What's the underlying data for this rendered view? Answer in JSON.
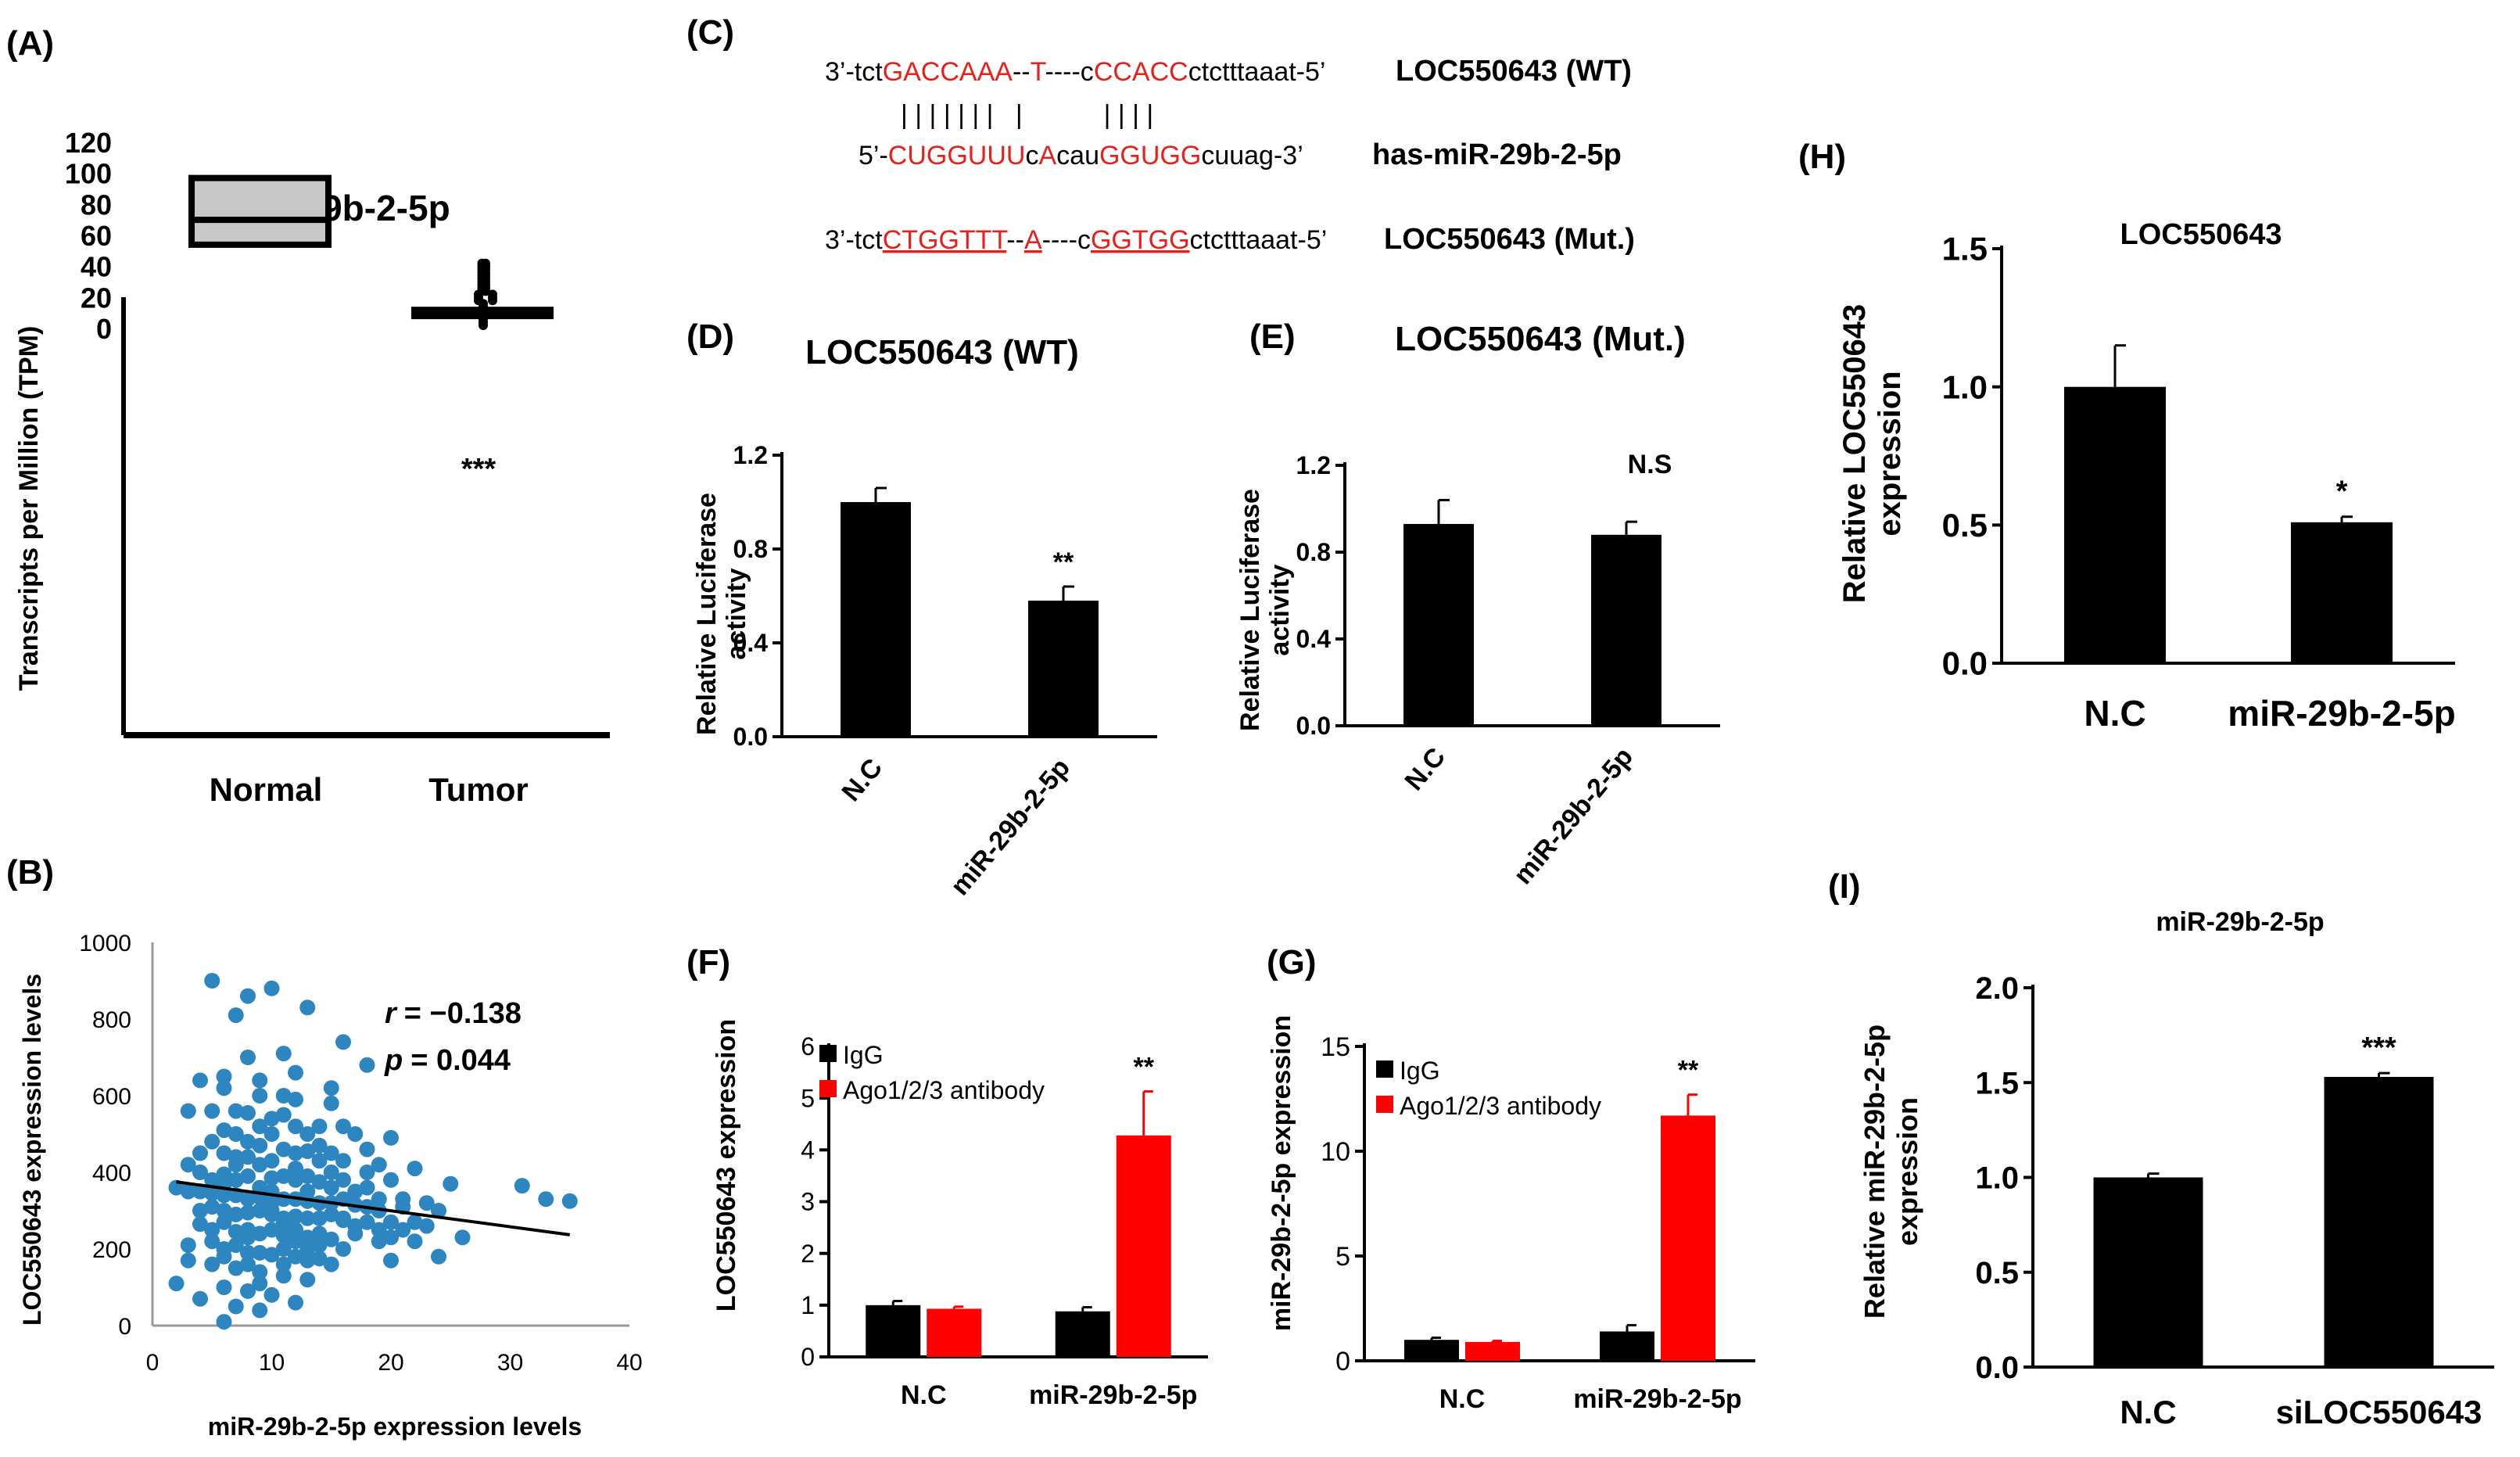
{
  "panels": {
    "A": {
      "letter": "(A)",
      "chart_data": {
        "type": "box",
        "title": "miR-29b-2-5p",
        "ylabel": "Transcripts per Million (TPM)",
        "ylim": [
          -15,
          125
        ],
        "yticks": [
          "0",
          "20",
          "40",
          "60",
          "80",
          "100",
          "120"
        ],
        "categories": [
          "Normal",
          "Tumor"
        ],
        "boxes": [
          {
            "name": "Normal",
            "q1": 54,
            "median": 70,
            "q3": 97
          },
          {
            "name": "Tumor",
            "q1": 7,
            "median": 10,
            "q3": 13
          }
        ],
        "tumor_points_range": [
          2,
          42
        ],
        "significance": "***"
      }
    },
    "B": {
      "letter": "(B)",
      "chart_data": {
        "type": "scatter",
        "xlabel": "miR-29b-2-5p expression levels",
        "ylabel": "LOC550643 expression levels",
        "xlim": [
          0,
          40
        ],
        "ylim": [
          0,
          1000
        ],
        "xticks": [
          "0",
          "10",
          "20",
          "30",
          "40"
        ],
        "yticks": [
          "0",
          "200",
          "400",
          "600",
          "800",
          "1000"
        ],
        "r_label": "r",
        "r_value": "= −0.138",
        "p_label": "p",
        "p_value": "= 0.044",
        "trendline": {
          "x": [
            2,
            35
          ],
          "y": [
            375,
            237
          ]
        },
        "point_color": "#2e86c1",
        "points": [
          [
            5,
            900
          ],
          [
            10,
            880
          ],
          [
            8,
            860
          ],
          [
            13,
            830
          ],
          [
            7,
            810
          ],
          [
            16,
            740
          ],
          [
            11,
            710
          ],
          [
            18,
            680
          ],
          [
            4,
            640
          ],
          [
            6,
            620
          ],
          [
            9,
            600
          ],
          [
            12,
            590
          ],
          [
            15,
            580
          ],
          [
            3,
            560
          ],
          [
            8,
            555
          ],
          [
            10,
            540
          ],
          [
            14,
            520
          ],
          [
            6,
            510
          ],
          [
            17,
            500
          ],
          [
            20,
            490
          ],
          [
            5,
            480
          ],
          [
            9,
            470
          ],
          [
            11,
            460
          ],
          [
            13,
            455
          ],
          [
            7,
            440
          ],
          [
            16,
            430
          ],
          [
            19,
            420
          ],
          [
            22,
            410
          ],
          [
            4,
            400
          ],
          [
            6,
            395
          ],
          [
            8,
            390
          ],
          [
            10,
            385
          ],
          [
            12,
            380
          ],
          [
            14,
            375
          ],
          [
            25,
            370
          ],
          [
            31,
            365
          ],
          [
            33,
            330
          ],
          [
            35,
            325
          ],
          [
            2,
            360
          ],
          [
            3,
            350
          ],
          [
            5,
            345
          ],
          [
            7,
            340
          ],
          [
            9,
            335
          ],
          [
            11,
            330
          ],
          [
            13,
            325
          ],
          [
            15,
            320
          ],
          [
            17,
            315
          ],
          [
            21,
            310
          ],
          [
            6,
            300
          ],
          [
            8,
            295
          ],
          [
            10,
            290
          ],
          [
            12,
            285
          ],
          [
            14,
            280
          ],
          [
            16,
            275
          ],
          [
            18,
            270
          ],
          [
            4,
            265
          ],
          [
            26,
            230
          ],
          [
            5,
            250
          ],
          [
            7,
            245
          ],
          [
            9,
            240
          ],
          [
            11,
            235
          ],
          [
            13,
            230
          ],
          [
            15,
            225
          ],
          [
            19,
            220
          ],
          [
            3,
            210
          ],
          [
            6,
            200
          ],
          [
            8,
            190
          ],
          [
            10,
            185
          ],
          [
            12,
            180
          ],
          [
            14,
            175
          ],
          [
            20,
            170
          ],
          [
            5,
            160
          ],
          [
            7,
            150
          ],
          [
            9,
            140
          ],
          [
            11,
            130
          ],
          [
            13,
            120
          ],
          [
            2,
            110
          ],
          [
            6,
            100
          ],
          [
            8,
            90
          ],
          [
            10,
            80
          ],
          [
            4,
            70
          ],
          [
            12,
            60
          ],
          [
            7,
            50
          ],
          [
            9,
            40
          ],
          [
            6,
            10
          ],
          [
            23,
            260
          ],
          [
            24,
            300
          ],
          [
            18,
            360
          ],
          [
            20,
            230
          ],
          [
            16,
            380
          ],
          [
            3,
            420
          ],
          [
            4,
            300
          ],
          [
            5,
            220
          ],
          [
            7,
            380
          ],
          [
            8,
            330
          ],
          [
            9,
            420
          ],
          [
            10,
            350
          ],
          [
            11,
            270
          ],
          [
            12,
            450
          ],
          [
            13,
            280
          ],
          [
            14,
            240
          ],
          [
            15,
            290
          ],
          [
            16,
            200
          ],
          [
            17,
            260
          ],
          [
            18,
            310
          ],
          [
            19,
            250
          ],
          [
            21,
            250
          ],
          [
            22,
            270
          ],
          [
            5,
            560
          ],
          [
            6,
            450
          ],
          [
            7,
            500
          ],
          [
            8,
            480
          ],
          [
            9,
            520
          ],
          [
            10,
            500
          ],
          [
            11,
            600
          ],
          [
            12,
            520
          ],
          [
            13,
            500
          ],
          [
            14,
            430
          ],
          [
            15,
            450
          ],
          [
            6,
            340
          ],
          [
            7,
            290
          ],
          [
            8,
            250
          ],
          [
            9,
            300
          ],
          [
            10,
            320
          ],
          [
            11,
            390
          ],
          [
            12,
            330
          ],
          [
            13,
            350
          ],
          [
            14,
            320
          ],
          [
            15,
            360
          ],
          [
            16,
            330
          ],
          [
            5,
            310
          ],
          [
            4,
            350
          ],
          [
            6,
            270
          ],
          [
            7,
            210
          ],
          [
            8,
            230
          ],
          [
            9,
            190
          ],
          [
            10,
            250
          ],
          [
            11,
            200
          ],
          [
            12,
            220
          ],
          [
            13,
            200
          ],
          [
            14,
            210
          ],
          [
            15,
            160
          ],
          [
            17,
            350
          ],
          [
            18,
            400
          ],
          [
            20,
            380
          ],
          [
            21,
            330
          ],
          [
            24,
            180
          ],
          [
            3,
            170
          ],
          [
            6,
            180
          ],
          [
            8,
            160
          ],
          [
            9,
            110
          ],
          [
            11,
            160
          ],
          [
            12,
            250
          ],
          [
            13,
            170
          ],
          [
            16,
            280
          ],
          [
            19,
            300
          ],
          [
            4,
            450
          ],
          [
            7,
            420
          ],
          [
            9,
            360
          ],
          [
            10,
            430
          ],
          [
            12,
            410
          ],
          [
            14,
            470
          ],
          [
            16,
            520
          ],
          [
            18,
            460
          ],
          [
            5,
            380
          ],
          [
            6,
            370
          ],
          [
            8,
            440
          ],
          [
            10,
            300
          ],
          [
            11,
            280
          ],
          [
            13,
            390
          ],
          [
            15,
            400
          ],
          [
            17,
            240
          ],
          [
            19,
            330
          ],
          [
            20,
            270
          ],
          [
            22,
            220
          ],
          [
            23,
            320
          ],
          [
            6,
            650
          ],
          [
            8,
            700
          ],
          [
            9,
            640
          ],
          [
            12,
            660
          ],
          [
            15,
            620
          ],
          [
            7,
            560
          ],
          [
            11,
            550
          ]
        ]
      }
    },
    "C": {
      "letter": "(C)",
      "rows": [
        {
          "segments": [
            [
              "3’-tct",
              "#000000"
            ],
            [
              "GACCAAA",
              "#e8201a"
            ],
            [
              "--",
              "#000000"
            ],
            [
              "T",
              "#e8201a"
            ],
            [
              "----c",
              "#000000"
            ],
            [
              "CCACC",
              "#e8201a"
            ],
            [
              "ctctttaaat-5’",
              "#000000"
            ]
          ],
          "label": "LOC550643 (WT)"
        },
        {
          "segments": [
            [
              "| | | | | | |   |           | | | |",
              "#000000"
            ]
          ],
          "label": ""
        },
        {
          "segments": [
            [
              "5’-",
              "#000000"
            ],
            [
              "CUGGUUU",
              "#e8201a"
            ],
            [
              "c",
              "#000000"
            ],
            [
              "A",
              "#e8201a"
            ],
            [
              "cau",
              "#000000"
            ],
            [
              "GGUGG",
              "#e8201a"
            ],
            [
              "cuuag-3’",
              "#000000"
            ]
          ],
          "label": "has-miR-29b-2-5p"
        },
        {
          "segments": [
            [
              "3’-tct",
              "#000000"
            ],
            [
              "CTGGTTT",
              "#e8201a"
            ],
            [
              "--",
              "#000000"
            ],
            [
              "A",
              "#e8201a"
            ],
            [
              "----c",
              "#000000"
            ],
            [
              "GGTGG",
              "#e8201a"
            ],
            [
              "ctctttaaat-5’",
              "#000000"
            ]
          ],
          "label": "LOC550643 (Mut.)"
        }
      ]
    },
    "D": {
      "letter": "(D)",
      "chart_data": {
        "type": "bar",
        "title": "LOC550643 (WT)",
        "ylabel": "Relative Luciferase activity",
        "ylabel_lines": [
          "Relative Luciferase",
          "activity"
        ],
        "ylim": [
          0,
          1.2
        ],
        "yticks": [
          "0.0",
          "0.4",
          "0.8",
          "1.2"
        ],
        "categories": [
          "N.C",
          "miR-29b-2-5p"
        ],
        "values": [
          1.0,
          0.58
        ],
        "errors": [
          0.06,
          0.06
        ],
        "annotations": [
          "",
          "**"
        ]
      }
    },
    "E": {
      "letter": "(E)",
      "chart_data": {
        "type": "bar",
        "title": "LOC550643 (Mut.)",
        "ylabel": "Relative Luciferase activity",
        "ylabel_lines": [
          "Relative Luciferase",
          "activity"
        ],
        "ylim": [
          0,
          1.2
        ],
        "yticks": [
          "0.0",
          "0.4",
          "0.8",
          "1.2"
        ],
        "categories": [
          "N.C",
          "miR-29b-2-5p"
        ],
        "values": [
          0.93,
          0.88
        ],
        "errors": [
          0.11,
          0.06
        ],
        "annotations": [
          "",
          ""
        ],
        "significance": "N.S"
      }
    },
    "F": {
      "letter": "(F)",
      "chart_data": {
        "type": "bar",
        "ylabel": "LOC550643 expression",
        "ylim": [
          0,
          6
        ],
        "yticks": [
          "0",
          "1",
          "2",
          "3",
          "4",
          "5",
          "6"
        ],
        "categories": [
          "N.C",
          "miR-29b-2-5p"
        ],
        "series": [
          {
            "name": "IgG",
            "color": "#000000",
            "values": [
              1.0,
              0.88
            ],
            "errors": [
              0.08,
              0.08
            ]
          },
          {
            "name": "Ago1/2/3 antibody",
            "color": "#ff0000",
            "values": [
              0.93,
              4.28
            ],
            "errors": [
              0.04,
              0.85
            ]
          }
        ],
        "annotations": [
          "",
          "**"
        ]
      }
    },
    "G": {
      "letter": "(G)",
      "chart_data": {
        "type": "bar",
        "ylabel": "miR-29b-2-5p expression",
        "ylim": [
          0,
          15
        ],
        "yticks": [
          "0",
          "5",
          "10",
          "15"
        ],
        "categories": [
          "N.C",
          "miR-29b-2-5p"
        ],
        "series": [
          {
            "name": "IgG",
            "color": "#000000",
            "values": [
              1.0,
              1.4
            ],
            "errors": [
              0.1,
              0.3
            ]
          },
          {
            "name": "Ago1/2/3 antibody",
            "color": "#ff0000",
            "values": [
              0.9,
              11.7
            ],
            "errors": [
              0.05,
              1.0
            ]
          }
        ],
        "annotations": [
          "",
          "**"
        ]
      }
    },
    "H": {
      "letter": "(H)",
      "chart_data": {
        "type": "bar",
        "title": "LOC550643",
        "ylabel": "Relative LOC550643 expression",
        "ylabel_lines": [
          "Relative LOC550643",
          "expression"
        ],
        "ylim": [
          0,
          1.5
        ],
        "yticks": [
          "0.0",
          "0.5",
          "1.0",
          "1.5"
        ],
        "categories": [
          "N.C",
          "miR-29b-2-5p"
        ],
        "values": [
          1.0,
          0.51
        ],
        "errors": [
          0.15,
          0.02
        ],
        "annotations": [
          "",
          "*"
        ]
      }
    },
    "I": {
      "letter": "(I)",
      "chart_data": {
        "type": "bar",
        "title": "miR-29b-2-5p",
        "ylabel": "Relative miR-29b-2-5p expression",
        "ylabel_lines": [
          "Relative miR-29b-2-5p",
          "expression"
        ],
        "ylim": [
          0,
          2.0
        ],
        "yticks": [
          "0.0",
          "0.5",
          "1.0",
          "1.5",
          "2.0"
        ],
        "categories": [
          "N.C",
          "siLOC550643"
        ],
        "values": [
          1.0,
          1.53
        ],
        "errors": [
          0.02,
          0.02
        ],
        "annotations": [
          "",
          "***"
        ]
      }
    }
  }
}
